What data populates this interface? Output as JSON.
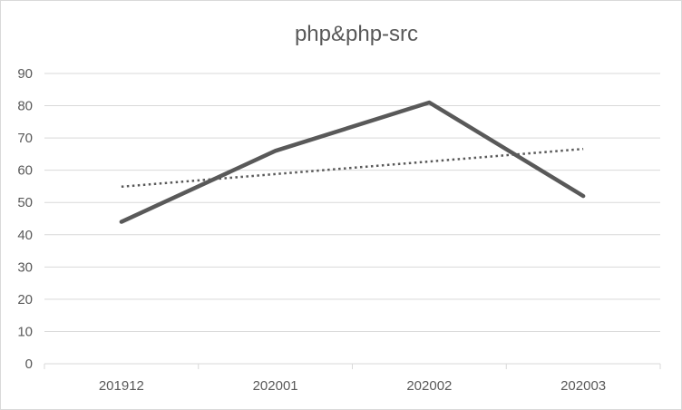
{
  "chart_data": {
    "type": "line",
    "title": "php&php-src",
    "categories": [
      "201912",
      "202001",
      "202002",
      "202003"
    ],
    "series": [
      {
        "values": [
          44,
          66,
          81,
          52
        ],
        "style": "solid",
        "color": "#595959"
      }
    ],
    "trendline": {
      "type": "linear",
      "style": "dotted",
      "color": "#595959"
    },
    "ylim": [
      0,
      90
    ],
    "y_ticks": [
      "0",
      "10",
      "20",
      "30",
      "40",
      "50",
      "60",
      "70",
      "80",
      "90"
    ],
    "grid": true,
    "legend": "none",
    "colors": {
      "line": "#595959",
      "grid": "#d9d9d9",
      "axis": "#d9d9d9",
      "text": "#595959"
    }
  }
}
